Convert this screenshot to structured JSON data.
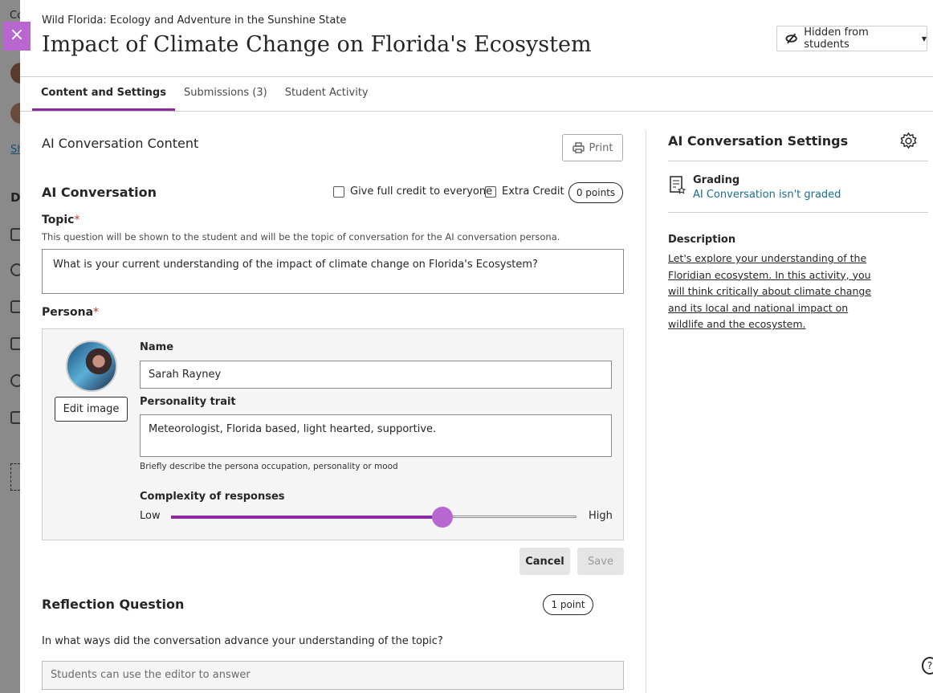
{
  "background": {
    "fragments": [
      "Co",
      "Sh",
      "D"
    ]
  },
  "header": {
    "breadcrumb": "Wild Florida: Ecology and Adventure in the Sunshine State",
    "title": "Impact of Climate Change on Florida's Ecosystem",
    "visibility": "Hidden from students",
    "close_icon": "close-icon"
  },
  "tabs": [
    {
      "label": "Content and Settings",
      "active": true
    },
    {
      "label": "Submissions (3)"
    },
    {
      "label": "Student Activity"
    }
  ],
  "content": {
    "section_title": "AI Conversation Content",
    "print_label": "Print",
    "conversation_title": "AI Conversation",
    "full_credit_label": "Give full credit to everyone",
    "extra_credit_label": "Extra Credit",
    "points": "0 points",
    "topic_label": "Topic",
    "required_mark": "*",
    "topic_help": "This question will be shown to the student and will be the topic of conversation for the AI conversation persona.",
    "topic_value": "What is your current understanding of the impact of climate change on Florida's Ecosystem?",
    "persona_label": "Persona",
    "edit_image": "Edit image",
    "name_label": "Name",
    "name_value": "Sarah Rayney",
    "trait_label": "Personality trait",
    "trait_value": "Meteorologist, Florida based, light hearted, supportive.",
    "trait_help": "Briefly describe the persona occupation, personality or mood",
    "complexity_label": "Complexity of responses",
    "low": "Low",
    "high": "High",
    "complexity_value": 0.67,
    "cancel": "Cancel",
    "save": "Save",
    "reflection_title": "Reflection Question",
    "reflection_points": "1 point",
    "reflection_question": "In what ways did the conversation advance your understanding of the topic?",
    "reflection_placeholder": "Students can use the editor to answer"
  },
  "settings": {
    "title": "AI Conversation Settings",
    "grading_label": "Grading",
    "grading_link": "AI Conversation isn't graded",
    "description_label": "Description",
    "description": "Let's explore your understanding of the Floridian ecosystem. In this activity, you will think critically about climate change and its local and national impact on wildlife and the ecosystem."
  },
  "colors": {
    "accent": "#8c2c9e",
    "slider": "#b867d0",
    "link": "#1a6e8e"
  }
}
